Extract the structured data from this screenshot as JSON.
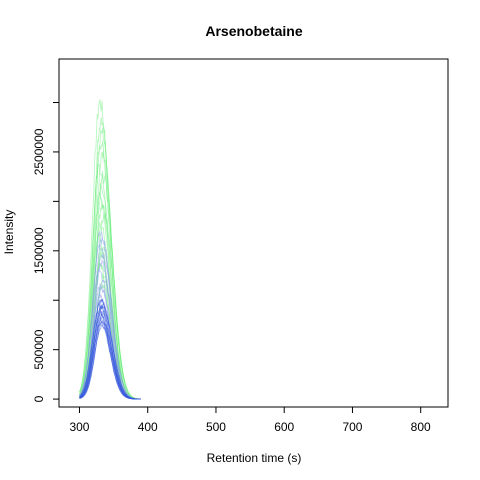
{
  "chart_data": {
    "type": "line",
    "title": "Arsenobetaine",
    "xlabel": "Retention time (s)",
    "ylabel": "Intensity",
    "xlim": [
      270,
      840
    ],
    "ylim": [
      -80000,
      3440000
    ],
    "x_ticks": [
      300,
      400,
      500,
      600,
      700,
      800
    ],
    "x_tick_labels": [
      "300",
      "400",
      "500",
      "600",
      "700",
      "800"
    ],
    "y_ticks": [
      0,
      500000,
      1000000,
      1500000,
      2000000,
      2500000,
      3000000
    ],
    "y_tick_labels": [
      "0",
      "500000",
      "",
      "1500000",
      "",
      "2500000",
      ""
    ],
    "grid": false,
    "legend": "none",
    "peak_window": [
      300,
      390
    ],
    "series_groups": [
      {
        "color": "#66ee77",
        "apex_rt": [
          330,
          332,
          333,
          331,
          334,
          329,
          335,
          332,
          330,
          333,
          336,
          331,
          328,
          334,
          332,
          330,
          335,
          333
        ],
        "apex_intensity": [
          3000000,
          2850000,
          2700000,
          2600000,
          2480000,
          2350000,
          2250000,
          2150000,
          2050000,
          1950000,
          1850000,
          1750000,
          1650000,
          1550000,
          1450000,
          1350000,
          1250000,
          1150000
        ]
      },
      {
        "color": "#8899ee",
        "apex_rt": [
          331,
          333,
          330,
          334,
          332,
          329,
          335,
          331,
          333,
          330,
          332,
          334
        ],
        "apex_intensity": [
          1700000,
          1620000,
          1540000,
          1460000,
          1380000,
          1300000,
          1220000,
          1150000,
          1100000,
          1050000,
          1000000,
          960000
        ]
      },
      {
        "color": "#3355dd",
        "apex_rt": [
          331,
          333,
          330,
          334,
          332,
          329,
          335,
          331,
          333,
          330,
          332,
          334,
          331,
          333
        ],
        "apex_intensity": [
          1000000,
          980000,
          960000,
          940000,
          920000,
          900000,
          880000,
          860000,
          840000,
          820000,
          800000,
          780000,
          760000,
          740000
        ]
      }
    ]
  }
}
